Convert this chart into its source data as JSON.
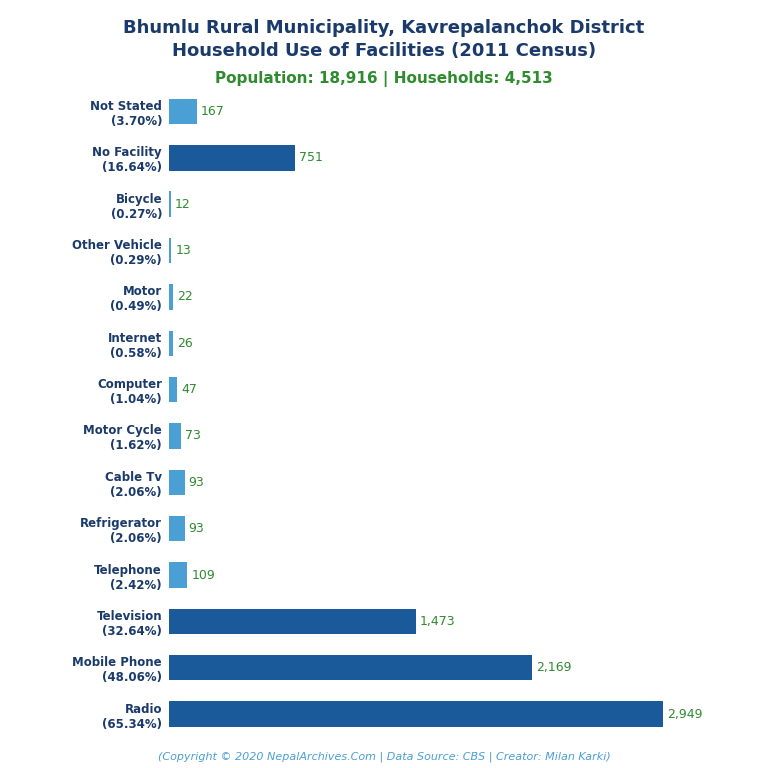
{
  "title_line1": "Bhumlu Rural Municipality, Kavrepalanchok District",
  "title_line2": "Household Use of Facilities (2011 Census)",
  "subtitle": "Population: 18,916 | Households: 4,513",
  "title_color": "#1a3a6b",
  "subtitle_color": "#2e8b2e",
  "categories": [
    "Not Stated\n(3.70%)",
    "No Facility\n(16.64%)",
    "Bicycle\n(0.27%)",
    "Other Vehicle\n(0.29%)",
    "Motor\n(0.49%)",
    "Internet\n(0.58%)",
    "Computer\n(1.04%)",
    "Motor Cycle\n(1.62%)",
    "Cable Tv\n(2.06%)",
    "Refrigerator\n(2.06%)",
    "Telephone\n(2.42%)",
    "Television\n(32.64%)",
    "Mobile Phone\n(48.06%)",
    "Radio\n(65.34%)"
  ],
  "values": [
    167,
    751,
    12,
    13,
    22,
    26,
    47,
    73,
    93,
    93,
    109,
    1473,
    2169,
    2949
  ],
  "bar_color_dark": "#1a5a9a",
  "bar_color_light": "#4a9fd4",
  "value_color": "#2e8b2e",
  "footer": "(Copyright © 2020 NepalArchives.Com | Data Source: CBS | Creator: Milan Karki)",
  "footer_color": "#4a9fd4",
  "xlim": [
    0,
    3300
  ],
  "background_color": "#ffffff"
}
